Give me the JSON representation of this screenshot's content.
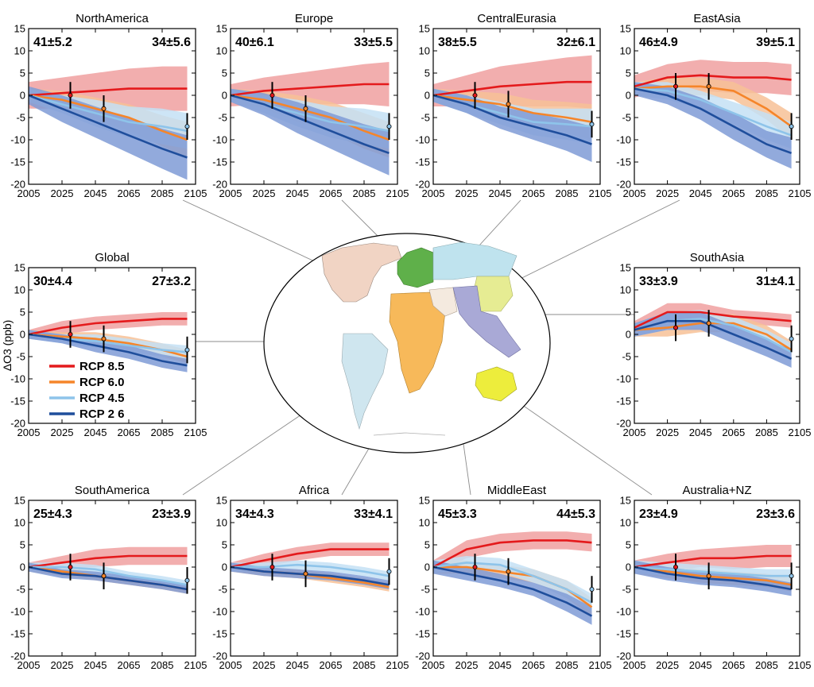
{
  "ylabel": "ΔO3 (ppb)",
  "colors": {
    "rcp85": "#e41a1c",
    "rcp85_band": "#f0a0a0",
    "rcp60": "#f5852a",
    "rcp60_band": "#f7c197",
    "rcp45": "#8ec4ea",
    "rcp45_band": "#c4e1f5",
    "rcp26": "#1f4e9c",
    "rcp26_band": "#7f9bd6"
  },
  "legend": [
    "RCP 8.5",
    "RCP 6.0",
    "RCP 4.5",
    "RCP 2 6"
  ],
  "map_regions": [
    {
      "name": "North America",
      "color": "#f1d4c4"
    },
    {
      "name": "South America",
      "color": "#cfe6ef"
    },
    {
      "name": "Europe",
      "color": "#5fb04a"
    },
    {
      "name": "Central Eurasia",
      "color": "#bfe3ee"
    },
    {
      "name": "East Asia",
      "color": "#e6ec93"
    },
    {
      "name": "Africa",
      "color": "#f7b95a"
    },
    {
      "name": "Middle East",
      "color": "#f4eadf"
    },
    {
      "name": "South Asia",
      "color": "#a9a9d6"
    },
    {
      "name": "Australia+NZ",
      "color": "#eded3c"
    }
  ],
  "chart_data": [
    {
      "type": "line",
      "title": "NorthAmerica",
      "ann_left": "41±5.2",
      "ann_right": "34±5.6",
      "x": [
        2005,
        2025,
        2045,
        2065,
        2085,
        2100
      ],
      "xticks": [
        "2005",
        "2025",
        "2045",
        "2065",
        "2085",
        "2105"
      ],
      "xlim": [
        2005,
        2105
      ],
      "ylim": [
        -20,
        15
      ],
      "yticks": [
        15,
        10,
        5,
        0,
        -5,
        -10,
        -15,
        -20
      ],
      "series": [
        {
          "name": "RCP 8.5",
          "values": [
            0,
            0.5,
            1,
            1.5,
            1.5,
            1.5
          ],
          "band": [
            3,
            3.5,
            4,
            4.5,
            5,
            5
          ]
        },
        {
          "name": "RCP 6.0",
          "values": [
            0,
            -1,
            -3,
            -5,
            -8,
            -10
          ],
          "band": [
            1.5,
            2,
            2.5,
            3,
            3.5,
            4
          ]
        },
        {
          "name": "RCP 4.5",
          "values": [
            0,
            -2,
            -4,
            -6,
            -7,
            -8
          ],
          "band": [
            1.5,
            2,
            3,
            3.5,
            4,
            4
          ]
        },
        {
          "name": "RCP 2 6",
          "values": [
            0,
            -3,
            -6,
            -9,
            -12,
            -14
          ],
          "band": [
            2,
            3,
            3.5,
            4,
            4.5,
            5
          ]
        }
      ]
    },
    {
      "type": "line",
      "title": "Europe",
      "ann_left": "40±6.1",
      "ann_right": "33±5.5",
      "x": [
        2005,
        2025,
        2045,
        2065,
        2085,
        2100
      ],
      "xticks": [
        "2005",
        "2025",
        "2045",
        "2065",
        "2085",
        "2105"
      ],
      "xlim": [
        2005,
        2105
      ],
      "ylim": [
        -20,
        15
      ],
      "yticks": [
        15,
        10,
        5,
        0,
        -5,
        -10,
        -15,
        -20
      ],
      "series": [
        {
          "name": "RCP 8.5",
          "values": [
            0,
            1,
            1.5,
            2,
            2.5,
            2.5
          ],
          "band": [
            2.5,
            3,
            3.5,
            4,
            4.5,
            5
          ]
        },
        {
          "name": "RCP 6.0",
          "values": [
            0,
            -1,
            -3,
            -5,
            -8,
            -10
          ],
          "band": [
            1.5,
            2,
            3,
            3.5,
            4,
            4
          ]
        },
        {
          "name": "RCP 4.5",
          "values": [
            0,
            -2,
            -4,
            -6,
            -7,
            -8
          ],
          "band": [
            1.5,
            2,
            3,
            3.5,
            4,
            4
          ]
        },
        {
          "name": "RCP 2 6",
          "values": [
            0,
            -2,
            -5,
            -8,
            -11,
            -13
          ],
          "band": [
            1.5,
            2.5,
            3.5,
            4,
            4.5,
            5
          ]
        }
      ]
    },
    {
      "type": "line",
      "title": "CentralEurasia",
      "ann_left": "38±5.5",
      "ann_right": "32±6.1",
      "x": [
        2005,
        2025,
        2045,
        2065,
        2085,
        2100
      ],
      "xticks": [
        "2005",
        "2025",
        "2045",
        "2065",
        "2085",
        "2105"
      ],
      "xlim": [
        2005,
        2105
      ],
      "ylim": [
        -20,
        15
      ],
      "yticks": [
        15,
        10,
        5,
        0,
        -5,
        -10,
        -15,
        -20
      ],
      "series": [
        {
          "name": "RCP 8.5",
          "values": [
            0,
            1,
            2,
            2.5,
            3,
            3
          ],
          "band": [
            2.5,
            3.5,
            4.5,
            5,
            5.5,
            6
          ]
        },
        {
          "name": "RCP 6.0",
          "values": [
            0,
            -1,
            -2,
            -4,
            -5,
            -6
          ],
          "band": [
            1.5,
            2,
            2.5,
            3,
            3.5,
            4
          ]
        },
        {
          "name": "RCP 4.5",
          "values": [
            0,
            -2,
            -4,
            -6,
            -6.5,
            -7
          ],
          "band": [
            1.5,
            2,
            2.5,
            3,
            3.5,
            4
          ]
        },
        {
          "name": "RCP 2 6",
          "values": [
            0,
            -2,
            -5,
            -7,
            -9,
            -11
          ],
          "band": [
            1.5,
            2,
            2.5,
            3,
            3.5,
            4
          ]
        }
      ]
    },
    {
      "type": "line",
      "title": "EastAsia",
      "ann_left": "46±4.9",
      "ann_right": "39±5.1",
      "x": [
        2005,
        2025,
        2045,
        2065,
        2085,
        2100
      ],
      "xticks": [
        "2005",
        "2025",
        "2045",
        "2065",
        "2085",
        "2105"
      ],
      "xlim": [
        2005,
        2105
      ],
      "ylim": [
        -20,
        15
      ],
      "yticks": [
        15,
        10,
        5,
        0,
        -5,
        -10,
        -15,
        -20
      ],
      "series": [
        {
          "name": "RCP 8.5",
          "values": [
            2,
            4,
            4.5,
            4,
            4,
            3.5
          ],
          "band": [
            2.5,
            3,
            3.5,
            3.5,
            3.5,
            3.5
          ]
        },
        {
          "name": "RCP 6.0",
          "values": [
            1.5,
            2,
            2,
            1,
            -3,
            -7
          ],
          "band": [
            1.5,
            2,
            2,
            2,
            2.5,
            3
          ]
        },
        {
          "name": "RCP 4.5",
          "values": [
            1.5,
            1,
            -1,
            -4,
            -7,
            -9
          ],
          "band": [
            1.5,
            2,
            2,
            2.5,
            3,
            3
          ]
        },
        {
          "name": "RCP 2 6",
          "values": [
            1.5,
            0,
            -3,
            -7,
            -11,
            -13
          ],
          "band": [
            1.5,
            2,
            2.5,
            3,
            3,
            3.5
          ]
        }
      ]
    },
    {
      "type": "line",
      "title": "Global",
      "ann_left": "30±4.4",
      "ann_right": "27±3.2",
      "x": [
        2005,
        2025,
        2045,
        2065,
        2085,
        2100
      ],
      "xticks": [
        "2005",
        "2025",
        "2045",
        "2065",
        "2085",
        "2105"
      ],
      "xlim": [
        2005,
        2105
      ],
      "ylim": [
        -20,
        15
      ],
      "yticks": [
        15,
        10,
        5,
        0,
        -5,
        -10,
        -15,
        -20
      ],
      "series": [
        {
          "name": "RCP 8.5",
          "values": [
            0,
            1.5,
            2.5,
            3,
            3.5,
            3.5
          ],
          "band": [
            1,
            1.5,
            1.5,
            1.5,
            1.5,
            1.5
          ]
        },
        {
          "name": "RCP 6.0",
          "values": [
            0,
            -0.5,
            -1,
            -2,
            -3.5,
            -5
          ],
          "band": [
            1,
            1,
            1.5,
            1.5,
            1.5,
            1.5
          ]
        },
        {
          "name": "RCP 4.5",
          "values": [
            0,
            -1,
            -1.5,
            -2.5,
            -3.5,
            -4
          ],
          "band": [
            1,
            1,
            1.5,
            1.5,
            1.5,
            1.5
          ]
        },
        {
          "name": "RCP 2 6",
          "values": [
            0,
            -1,
            -2.5,
            -4,
            -6,
            -7
          ],
          "band": [
            1,
            1,
            1.5,
            1.5,
            1.5,
            1.5
          ]
        }
      ]
    },
    {
      "type": "line",
      "title": "SouthAsia",
      "ann_left": "33±3.9",
      "ann_right": "31±4.1",
      "x": [
        2005,
        2025,
        2045,
        2065,
        2085,
        2100
      ],
      "xticks": [
        "2005",
        "2025",
        "2045",
        "2065",
        "2085",
        "2105"
      ],
      "xlim": [
        2005,
        2105
      ],
      "ylim": [
        -20,
        15
      ],
      "yticks": [
        15,
        10,
        5,
        0,
        -5,
        -10,
        -15,
        -20
      ],
      "series": [
        {
          "name": "RCP 8.5",
          "values": [
            1.5,
            5,
            5,
            4,
            3.5,
            3
          ],
          "band": [
            1.5,
            2,
            2,
            1.5,
            1.5,
            1.5
          ]
        },
        {
          "name": "RCP 6.0",
          "values": [
            1,
            1.5,
            2.5,
            2.5,
            0,
            -3.5
          ],
          "band": [
            1.5,
            2,
            2,
            2,
            2,
            2
          ]
        },
        {
          "name": "RCP 4.5",
          "values": [
            1,
            3,
            3.5,
            2,
            -1,
            -4
          ],
          "band": [
            1.5,
            2,
            2,
            2,
            2,
            2
          ]
        },
        {
          "name": "RCP 2 6",
          "values": [
            1,
            3,
            3,
            0,
            -3,
            -5.5
          ],
          "band": [
            1.5,
            2,
            2,
            2,
            2,
            2
          ]
        }
      ]
    },
    {
      "type": "line",
      "title": "SouthAmerica",
      "ann_left": "25±4.3",
      "ann_right": "23±3.9",
      "x": [
        2005,
        2025,
        2045,
        2065,
        2085,
        2100
      ],
      "xticks": [
        "2005",
        "2025",
        "2045",
        "2065",
        "2085",
        "2105"
      ],
      "xlim": [
        2005,
        2105
      ],
      "ylim": [
        -20,
        15
      ],
      "yticks": [
        15,
        10,
        5,
        0,
        -5,
        -10,
        -15,
        -20
      ],
      "series": [
        {
          "name": "RCP 8.5",
          "values": [
            0,
            1,
            2,
            2.5,
            2.5,
            2.5
          ],
          "band": [
            1,
            1.5,
            2,
            2,
            2,
            2
          ]
        },
        {
          "name": "RCP 6.0",
          "values": [
            0,
            -1,
            -2,
            -3,
            -4,
            -5
          ],
          "band": [
            1,
            1,
            1,
            1,
            1,
            1
          ]
        },
        {
          "name": "RCP 4.5",
          "values": [
            0,
            0,
            -0.5,
            -2,
            -3,
            -4
          ],
          "band": [
            1,
            1,
            1,
            1,
            1,
            1
          ]
        },
        {
          "name": "RCP 2 6",
          "values": [
            0,
            -1.5,
            -2,
            -3,
            -4,
            -5
          ],
          "band": [
            1,
            1,
            1,
            1,
            1,
            1
          ]
        }
      ]
    },
    {
      "type": "line",
      "title": "Africa",
      "ann_left": "34±4.3",
      "ann_right": "33±4.1",
      "x": [
        2005,
        2025,
        2045,
        2065,
        2085,
        2100
      ],
      "xticks": [
        "2005",
        "2025",
        "2045",
        "2065",
        "2085",
        "2105"
      ],
      "xlim": [
        2005,
        2105
      ],
      "ylim": [
        -20,
        15
      ],
      "yticks": [
        15,
        10,
        5,
        0,
        -5,
        -10,
        -15,
        -20
      ],
      "series": [
        {
          "name": "RCP 8.5",
          "values": [
            0,
            1.5,
            3,
            4,
            4,
            4
          ],
          "band": [
            1,
            1.5,
            1.5,
            1.5,
            1.5,
            1.5
          ]
        },
        {
          "name": "RCP 6.0",
          "values": [
            0,
            -1,
            -1.5,
            -2.5,
            -3.5,
            -4.5
          ],
          "band": [
            1,
            1,
            1,
            1,
            1,
            1
          ]
        },
        {
          "name": "RCP 4.5",
          "values": [
            0,
            0,
            0.5,
            0,
            -1,
            -2
          ],
          "band": [
            1,
            1,
            1,
            1,
            1,
            1
          ]
        },
        {
          "name": "RCP 2 6",
          "values": [
            0,
            -1,
            -1.5,
            -2,
            -3,
            -4
          ],
          "band": [
            1,
            1,
            1,
            1,
            1,
            1
          ]
        }
      ]
    },
    {
      "type": "line",
      "title": "MiddleEast",
      "ann_left": "45±3.3",
      "ann_right": "44±5.3",
      "x": [
        2005,
        2025,
        2045,
        2065,
        2085,
        2100
      ],
      "xticks": [
        "2005",
        "2025",
        "2045",
        "2065",
        "2085",
        "2105"
      ],
      "xlim": [
        2005,
        2105
      ],
      "ylim": [
        -20,
        15
      ],
      "yticks": [
        15,
        10,
        5,
        0,
        -5,
        -10,
        -15,
        -20
      ],
      "series": [
        {
          "name": "RCP 8.5",
          "values": [
            0,
            4,
            5.5,
            6,
            6,
            5.5
          ],
          "band": [
            1.5,
            2,
            2,
            2,
            2,
            2
          ]
        },
        {
          "name": "RCP 6.0",
          "values": [
            0,
            0,
            -1,
            -2,
            -5,
            -9
          ],
          "band": [
            1.5,
            1.5,
            1.5,
            1.5,
            2,
            2
          ]
        },
        {
          "name": "RCP 4.5",
          "values": [
            0,
            1,
            0.5,
            -2,
            -5,
            -8
          ],
          "band": [
            1.5,
            1.5,
            1.5,
            1.5,
            2,
            2
          ]
        },
        {
          "name": "RCP 2 6",
          "values": [
            0,
            -1.5,
            -3,
            -5,
            -8,
            -11
          ],
          "band": [
            1.5,
            1.5,
            1.5,
            1.5,
            2,
            2
          ]
        }
      ]
    },
    {
      "type": "line",
      "title": "Australia+NZ",
      "ann_left": "23±4.9",
      "ann_right": "23±3.6",
      "x": [
        2005,
        2025,
        2045,
        2065,
        2085,
        2100
      ],
      "xticks": [
        "2005",
        "2025",
        "2045",
        "2065",
        "2085",
        "2105"
      ],
      "xlim": [
        2005,
        2105
      ],
      "ylim": [
        -20,
        15
      ],
      "yticks": [
        15,
        10,
        5,
        0,
        -5,
        -10,
        -15,
        -20
      ],
      "series": [
        {
          "name": "RCP 8.5",
          "values": [
            0,
            1,
            2,
            2,
            2.5,
            2.5
          ],
          "band": [
            1.5,
            2,
            2,
            2.5,
            2.5,
            2.5
          ]
        },
        {
          "name": "RCP 6.0",
          "values": [
            0,
            -1,
            -2,
            -2.5,
            -3,
            -4
          ],
          "band": [
            1.5,
            1.5,
            1.5,
            1.5,
            1.5,
            1.5
          ]
        },
        {
          "name": "RCP 4.5",
          "values": [
            0,
            -0.5,
            -1,
            -1.5,
            -2,
            -2
          ],
          "band": [
            1.5,
            1.5,
            1.5,
            1.5,
            1.5,
            1.5
          ]
        },
        {
          "name": "RCP 2 6",
          "values": [
            0,
            -1.5,
            -2.5,
            -3,
            -4,
            -5
          ],
          "band": [
            1.5,
            1.5,
            1.5,
            1.5,
            1.5,
            1.5
          ]
        }
      ]
    }
  ]
}
